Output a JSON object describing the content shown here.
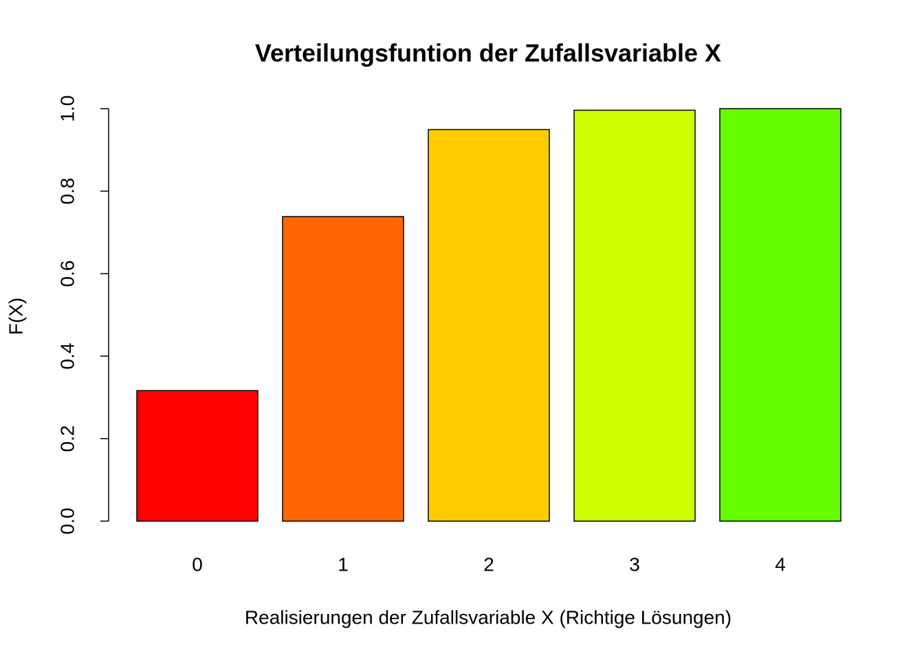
{
  "chart_data": {
    "type": "bar",
    "title": "Verteilungsfuntion der Zufallsvariable X",
    "x_label": "Realisierungen der Zufallsvariable X (Richtige Lösungen)",
    "y_label": "F(X)",
    "categories": [
      "0",
      "1",
      "2",
      "3",
      "4"
    ],
    "values": [
      0.3164,
      0.7383,
      0.9492,
      0.9961,
      1.0
    ],
    "colors": [
      "#ff0000",
      "#ff6600",
      "#ffcc00",
      "#ccff00",
      "#66ff00"
    ],
    "ylim": [
      0,
      1
    ],
    "yticks": [
      {
        "value": 0,
        "label": "0.0"
      },
      0.2,
      0.4,
      0.6,
      0.8,
      {
        "value": 1,
        "label": "1.0"
      }
    ],
    "grid": false
  }
}
